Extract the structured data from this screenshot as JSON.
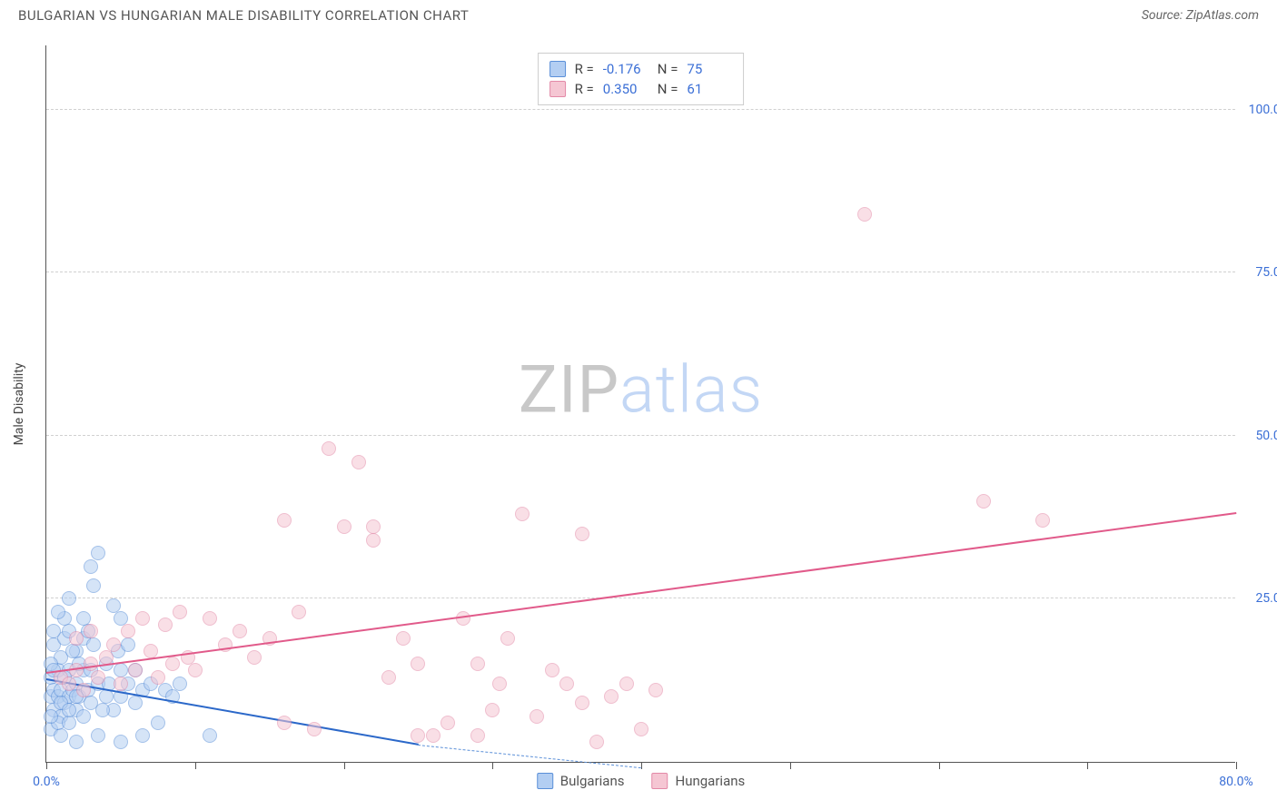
{
  "title": "BULGARIAN VS HUNGARIAN MALE DISABILITY CORRELATION CHART",
  "source": "Source: ZipAtlas.com",
  "y_axis_title": "Male Disability",
  "watermark_left": "ZIP",
  "watermark_right": "atlas",
  "chart": {
    "type": "scatter",
    "xlim": [
      0,
      80
    ],
    "ylim": [
      0,
      110
    ],
    "background_color": "#ffffff",
    "grid_color": "#d0d0d0",
    "axis_color": "#555555",
    "label_color": "#3b6fd6",
    "y_ticks": [
      {
        "v": 25,
        "label": "25.0%"
      },
      {
        "v": 50,
        "label": "50.0%"
      },
      {
        "v": 75,
        "label": "75.0%"
      },
      {
        "v": 100,
        "label": "100.0%"
      }
    ],
    "x_ticks": [
      {
        "v": 0,
        "label": "0.0%"
      },
      {
        "v": 10,
        "label": ""
      },
      {
        "v": 20,
        "label": ""
      },
      {
        "v": 30,
        "label": ""
      },
      {
        "v": 40,
        "label": ""
      },
      {
        "v": 50,
        "label": ""
      },
      {
        "v": 60,
        "label": ""
      },
      {
        "v": 70,
        "label": ""
      },
      {
        "v": 80,
        "label": "80.0%"
      }
    ],
    "series": [
      {
        "name": "Bulgarians",
        "fill_color": "#b3cef2",
        "stroke_color": "#5a8fd8",
        "line_color": "#2b68c9",
        "fill_opacity": 0.55,
        "marker_radius": 8,
        "R": "-0.176",
        "N": "75",
        "trend": {
          "x1": 0,
          "y1": 12.5,
          "x2": 25,
          "y2": 2.5,
          "dash_x2": 40,
          "dash_y2": -1
        },
        "points": [
          [
            0.3,
            10
          ],
          [
            0.3,
            13
          ],
          [
            0.5,
            8
          ],
          [
            0.5,
            11
          ],
          [
            0.5,
            18
          ],
          [
            0.8,
            10
          ],
          [
            0.8,
            14
          ],
          [
            1.0,
            7
          ],
          [
            1.0,
            11
          ],
          [
            1.0,
            16
          ],
          [
            1.2,
            9
          ],
          [
            1.2,
            22
          ],
          [
            1.5,
            10
          ],
          [
            1.5,
            14
          ],
          [
            1.5,
            25
          ],
          [
            1.8,
            11
          ],
          [
            2.0,
            8
          ],
          [
            2.0,
            12
          ],
          [
            2.0,
            17
          ],
          [
            2.2,
            10
          ],
          [
            2.5,
            14
          ],
          [
            2.5,
            19
          ],
          [
            2.8,
            11
          ],
          [
            3.0,
            9
          ],
          [
            3.0,
            14
          ],
          [
            3.0,
            30
          ],
          [
            3.2,
            27
          ],
          [
            3.5,
            12
          ],
          [
            3.5,
            32
          ],
          [
            4.0,
            10
          ],
          [
            4.0,
            15
          ],
          [
            4.2,
            12
          ],
          [
            4.5,
            8
          ],
          [
            4.5,
            24
          ],
          [
            5.0,
            10
          ],
          [
            5.0,
            14
          ],
          [
            5.0,
            22
          ],
          [
            5.5,
            12
          ],
          [
            6.0,
            9
          ],
          [
            6.0,
            14
          ],
          [
            6.5,
            11
          ],
          [
            7.0,
            12
          ],
          [
            7.5,
            6
          ],
          [
            8.0,
            11
          ],
          [
            8.5,
            10
          ],
          [
            9.0,
            12
          ],
          [
            0.3,
            5
          ],
          [
            1.0,
            4
          ],
          [
            2.0,
            3
          ],
          [
            3.5,
            4
          ],
          [
            5.0,
            3
          ],
          [
            6.5,
            4
          ],
          [
            2.5,
            7
          ],
          [
            3.8,
            8
          ],
          [
            0.8,
            6
          ],
          [
            1.5,
            6
          ],
          [
            2.2,
            15
          ],
          [
            4.8,
            17
          ],
          [
            1.2,
            19
          ],
          [
            0.5,
            20
          ],
          [
            2.8,
            20
          ],
          [
            3.2,
            18
          ],
          [
            5.5,
            18
          ],
          [
            0.3,
            15
          ],
          [
            1.8,
            17
          ],
          [
            2.5,
            22
          ],
          [
            0.8,
            23
          ],
          [
            1.5,
            20
          ],
          [
            11.0,
            4
          ],
          [
            0.3,
            7
          ],
          [
            1.0,
            9
          ],
          [
            1.5,
            8
          ],
          [
            2.0,
            10
          ],
          [
            0.5,
            14
          ],
          [
            1.2,
            13
          ]
        ]
      },
      {
        "name": "Hungarians",
        "fill_color": "#f5c6d3",
        "stroke_color": "#e389a7",
        "line_color": "#e15a8a",
        "fill_opacity": 0.55,
        "marker_radius": 8,
        "R": "0.350",
        "N": "61",
        "trend": {
          "x1": 0,
          "y1": 13.5,
          "x2": 80,
          "y2": 38
        },
        "points": [
          [
            1.0,
            13
          ],
          [
            1.5,
            12
          ],
          [
            2.0,
            14
          ],
          [
            2.5,
            11
          ],
          [
            3.0,
            15
          ],
          [
            3.5,
            13
          ],
          [
            4.0,
            16
          ],
          [
            4.5,
            18
          ],
          [
            5.0,
            12
          ],
          [
            5.5,
            20
          ],
          [
            6.0,
            14
          ],
          [
            6.5,
            22
          ],
          [
            7.0,
            17
          ],
          [
            7.5,
            13
          ],
          [
            8.0,
            21
          ],
          [
            8.5,
            15
          ],
          [
            9.0,
            23
          ],
          [
            9.5,
            16
          ],
          [
            10.0,
            14
          ],
          [
            11.0,
            22
          ],
          [
            12.0,
            18
          ],
          [
            13.0,
            20
          ],
          [
            14.0,
            16
          ],
          [
            15.0,
            19
          ],
          [
            16.0,
            37
          ],
          [
            17.0,
            23
          ],
          [
            18.0,
            5
          ],
          [
            19.0,
            48
          ],
          [
            20.0,
            36
          ],
          [
            21.0,
            46
          ],
          [
            22.0,
            34
          ],
          [
            22.0,
            36
          ],
          [
            23.0,
            13
          ],
          [
            24.0,
            19
          ],
          [
            25.0,
            15
          ],
          [
            26.0,
            4
          ],
          [
            27.0,
            6
          ],
          [
            28.0,
            22
          ],
          [
            29.0,
            15
          ],
          [
            30.0,
            8
          ],
          [
            30.5,
            12
          ],
          [
            31.0,
            19
          ],
          [
            32.0,
            38
          ],
          [
            33.0,
            7
          ],
          [
            34.0,
            14
          ],
          [
            35.0,
            12
          ],
          [
            36.0,
            9
          ],
          [
            36.0,
            35
          ],
          [
            37.0,
            3
          ],
          [
            38.0,
            10
          ],
          [
            39.0,
            12
          ],
          [
            40.0,
            5
          ],
          [
            41.0,
            11
          ],
          [
            55.0,
            84
          ],
          [
            63.0,
            40
          ],
          [
            67.0,
            37
          ],
          [
            2.0,
            19
          ],
          [
            3.0,
            20
          ],
          [
            16.0,
            6
          ],
          [
            25.0,
            4
          ],
          [
            29.0,
            4
          ]
        ]
      }
    ]
  },
  "stat_box": {
    "rows": [
      {
        "swatch_fill": "#b3cef2",
        "swatch_stroke": "#5a8fd8",
        "r_label": "R =",
        "r_val": "-0.176",
        "n_label": "N =",
        "n_val": "75"
      },
      {
        "swatch_fill": "#f5c6d3",
        "swatch_stroke": "#e389a7",
        "r_label": "R =",
        "r_val": "0.350",
        "n_label": "N =",
        "n_val": "61"
      }
    ]
  },
  "bottom_legend": [
    {
      "swatch_fill": "#b3cef2",
      "swatch_stroke": "#5a8fd8",
      "label": "Bulgarians"
    },
    {
      "swatch_fill": "#f5c6d3",
      "swatch_stroke": "#e389a7",
      "label": "Hungarians"
    }
  ]
}
